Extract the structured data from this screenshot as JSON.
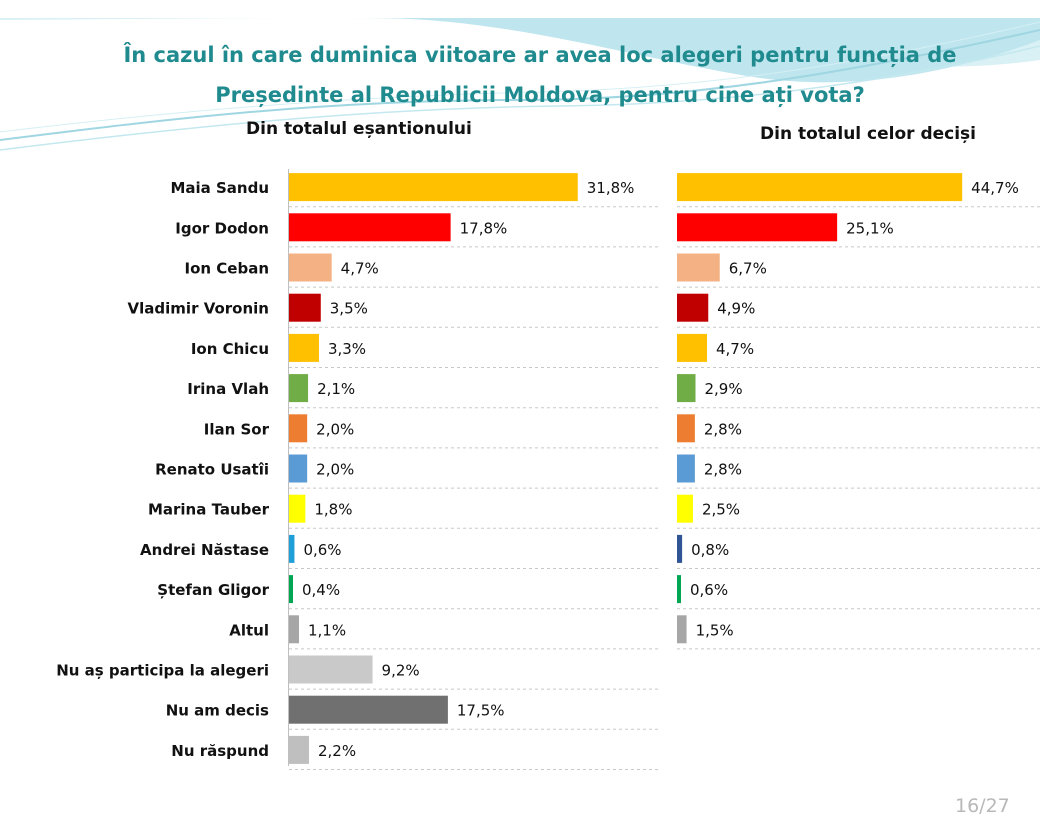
{
  "title_line1": "În cazul în care duminica viitoare ar avea loc alegeri pentru funcția de",
  "title_line2": "Președinte al Republicii Moldova, pentru cine ați vota?",
  "page_number": "16/27",
  "chart_data": [
    {
      "type": "bar",
      "orientation": "horizontal",
      "title": "Din totalul eșantionului",
      "categories": [
        "Maia Sandu",
        "Igor Dodon",
        "Ion Ceban",
        "Vladimir Voronin",
        "Ion Chicu",
        "Irina Vlah",
        "Ilan Sor",
        "Renato Usatîi",
        "Marina Tauber",
        "Andrei Năstase",
        "Ștefan Gligor",
        "Altul",
        "Nu aș participa la alegeri",
        "Nu am decis",
        "Nu răspund"
      ],
      "values": [
        31.8,
        17.8,
        4.7,
        3.5,
        3.3,
        2.1,
        2.0,
        2.0,
        1.8,
        0.6,
        0.4,
        1.1,
        9.2,
        17.5,
        2.2
      ],
      "labels": [
        "31,8%",
        "17,8%",
        "4,7%",
        "3,5%",
        "3,3%",
        "2,1%",
        "2,0%",
        "2,0%",
        "1,8%",
        "0,6%",
        "0,4%",
        "1,1%",
        "9,2%",
        "17,5%",
        "2,2%"
      ],
      "colors": [
        "#FFC000",
        "#FF0000",
        "#F4B183",
        "#C00000",
        "#FFC000",
        "#70AD47",
        "#ED7D31",
        "#5B9BD5",
        "#FFFF00",
        "#1F9FD8",
        "#00A651",
        "#A6A6A6",
        "#C9C9C9",
        "#707070",
        "#BFBFBF"
      ]
    },
    {
      "type": "bar",
      "orientation": "horizontal",
      "title": "Din totalul celor deciși",
      "categories": [
        "Maia Sandu",
        "Igor Dodon",
        "Ion Ceban",
        "Vladimir Voronin",
        "Ion Chicu",
        "Irina Vlah",
        "Ilan Sor",
        "Renato Usatîi",
        "Marina Tauber",
        "Andrei Năstase",
        "Ștefan Gligor",
        "Altul"
      ],
      "values": [
        44.7,
        25.1,
        6.7,
        4.9,
        4.7,
        2.9,
        2.8,
        2.8,
        2.5,
        0.8,
        0.6,
        1.5
      ],
      "labels": [
        "44,7%",
        "25,1%",
        "6,7%",
        "4,9%",
        "4,7%",
        "2,9%",
        "2,8%",
        "2,8%",
        "2,5%",
        "0,8%",
        "0,6%",
        "1,5%"
      ],
      "colors": [
        "#FFC000",
        "#FF0000",
        "#F4B183",
        "#C00000",
        "#FFC000",
        "#70AD47",
        "#ED7D31",
        "#5B9BD5",
        "#FFFF00",
        "#2F5597",
        "#00A651",
        "#A6A6A6"
      ]
    }
  ]
}
